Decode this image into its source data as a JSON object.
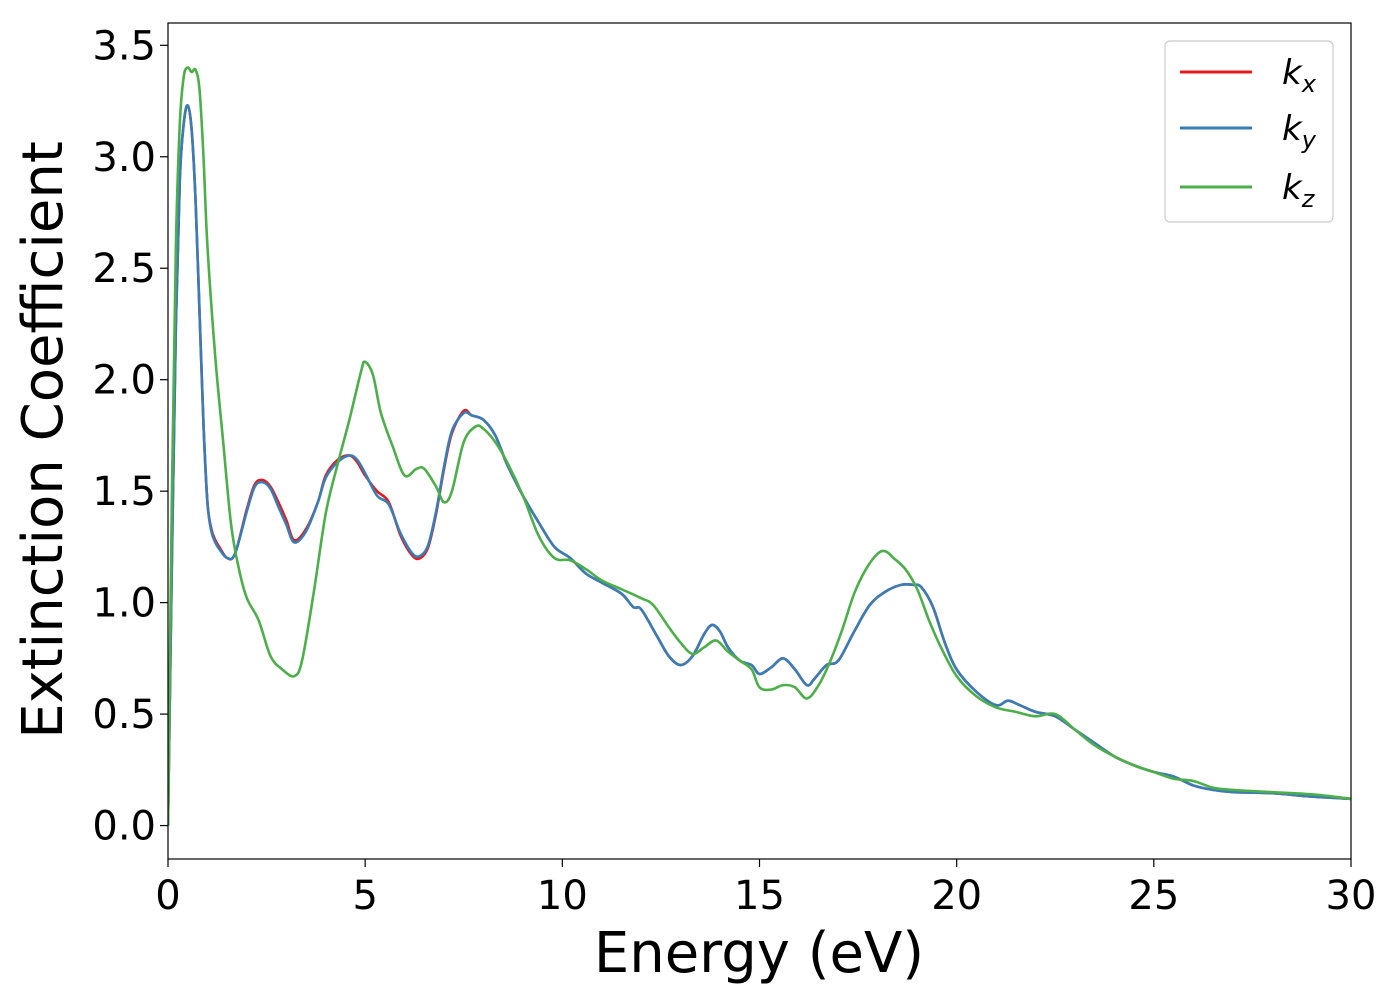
{
  "chart_data": {
    "type": "line",
    "title": "",
    "xlabel": "Energy (eV)",
    "ylabel": "Extinction Coefficient",
    "xlim": [
      0,
      30
    ],
    "ylim": [
      -0.15,
      3.6
    ],
    "xticks": [
      "0",
      "5",
      "10",
      "15",
      "20",
      "25",
      "30"
    ],
    "yticks": [
      "0.0",
      "0.5",
      "1.0",
      "1.5",
      "2.0",
      "2.5",
      "3.0",
      "3.5"
    ],
    "grid": false,
    "legend_position": "top-right",
    "series": [
      {
        "name": "k_x",
        "label_main": "k",
        "label_sub": "x",
        "color": "#e41a1c",
        "x": [
          0,
          0.1,
          0.2,
          0.3,
          0.4,
          0.5,
          0.6,
          0.7,
          0.8,
          0.9,
          1.0,
          1.1,
          1.2,
          1.3,
          1.5,
          1.7,
          2.0,
          2.2,
          2.4,
          2.6,
          2.8,
          3.0,
          3.2,
          3.5,
          3.8,
          4.0,
          4.3,
          4.6,
          4.8,
          5.0,
          5.3,
          5.6,
          5.9,
          6.2,
          6.4,
          6.6,
          6.8,
          7.0,
          7.2,
          7.5,
          7.7,
          8.0,
          8.3,
          8.6,
          9.0,
          9.4,
          9.8,
          10.2,
          10.6,
          11.0,
          11.5,
          11.8,
          12.0,
          12.4,
          12.7,
          13.0,
          13.3,
          13.6,
          13.8,
          14.0,
          14.2,
          14.5,
          14.8,
          15.0,
          15.3,
          15.6,
          15.9,
          16.2,
          16.4,
          16.7,
          17.0,
          17.4,
          17.8,
          18.2,
          18.6,
          18.9,
          19.1,
          19.4,
          19.7,
          20.0,
          20.5,
          21.0,
          21.3,
          21.6,
          22.0,
          22.5,
          23.0,
          23.5,
          24.0,
          24.5,
          25.0,
          25.5,
          26.0,
          26.5,
          27.0,
          28.0,
          29.0,
          30.0
        ],
        "y": [
          0.0,
          1.2,
          2.25,
          2.9,
          3.15,
          3.23,
          3.12,
          2.8,
          2.3,
          1.8,
          1.45,
          1.33,
          1.28,
          1.25,
          1.2,
          1.22,
          1.42,
          1.53,
          1.55,
          1.52,
          1.45,
          1.37,
          1.28,
          1.33,
          1.45,
          1.57,
          1.64,
          1.66,
          1.63,
          1.57,
          1.5,
          1.45,
          1.3,
          1.21,
          1.2,
          1.25,
          1.4,
          1.6,
          1.76,
          1.86,
          1.84,
          1.82,
          1.75,
          1.62,
          1.48,
          1.36,
          1.25,
          1.2,
          1.13,
          1.09,
          1.04,
          0.98,
          0.97,
          0.85,
          0.76,
          0.72,
          0.76,
          0.86,
          0.9,
          0.87,
          0.8,
          0.74,
          0.72,
          0.68,
          0.71,
          0.75,
          0.7,
          0.63,
          0.66,
          0.72,
          0.74,
          0.87,
          0.99,
          1.05,
          1.08,
          1.08,
          1.07,
          0.98,
          0.82,
          0.7,
          0.6,
          0.54,
          0.56,
          0.54,
          0.51,
          0.49,
          0.43,
          0.37,
          0.31,
          0.27,
          0.24,
          0.22,
          0.18,
          0.16,
          0.15,
          0.145,
          0.13,
          0.12
        ]
      },
      {
        "name": "k_y",
        "label_main": "k",
        "label_sub": "y",
        "color": "#377eb8",
        "x": [
          0,
          0.1,
          0.2,
          0.3,
          0.4,
          0.5,
          0.6,
          0.7,
          0.8,
          0.9,
          1.0,
          1.1,
          1.2,
          1.3,
          1.5,
          1.7,
          2.0,
          2.2,
          2.4,
          2.6,
          2.8,
          3.0,
          3.2,
          3.5,
          3.8,
          4.0,
          4.3,
          4.6,
          4.8,
          5.0,
          5.3,
          5.6,
          5.9,
          6.2,
          6.4,
          6.6,
          6.8,
          7.0,
          7.2,
          7.5,
          7.7,
          8.0,
          8.3,
          8.6,
          9.0,
          9.4,
          9.8,
          10.2,
          10.6,
          11.0,
          11.5,
          11.8,
          12.0,
          12.4,
          12.7,
          13.0,
          13.3,
          13.6,
          13.8,
          14.0,
          14.2,
          14.5,
          14.8,
          15.0,
          15.3,
          15.6,
          15.9,
          16.2,
          16.4,
          16.7,
          17.0,
          17.4,
          17.8,
          18.2,
          18.6,
          18.9,
          19.1,
          19.4,
          19.7,
          20.0,
          20.5,
          21.0,
          21.3,
          21.6,
          22.0,
          22.5,
          23.0,
          23.5,
          24.0,
          24.5,
          25.0,
          25.5,
          26.0,
          26.5,
          27.0,
          28.0,
          29.0,
          30.0
        ],
        "y": [
          0.0,
          1.2,
          2.25,
          2.9,
          3.15,
          3.23,
          3.12,
          2.8,
          2.3,
          1.8,
          1.45,
          1.32,
          1.27,
          1.24,
          1.2,
          1.22,
          1.41,
          1.52,
          1.54,
          1.51,
          1.43,
          1.35,
          1.27,
          1.32,
          1.45,
          1.56,
          1.63,
          1.66,
          1.64,
          1.58,
          1.48,
          1.44,
          1.31,
          1.22,
          1.21,
          1.26,
          1.41,
          1.61,
          1.77,
          1.85,
          1.84,
          1.82,
          1.75,
          1.62,
          1.48,
          1.36,
          1.25,
          1.2,
          1.13,
          1.09,
          1.04,
          0.98,
          0.97,
          0.85,
          0.76,
          0.72,
          0.76,
          0.86,
          0.9,
          0.87,
          0.8,
          0.74,
          0.72,
          0.68,
          0.71,
          0.75,
          0.7,
          0.63,
          0.66,
          0.72,
          0.74,
          0.87,
          0.99,
          1.05,
          1.08,
          1.08,
          1.07,
          0.98,
          0.82,
          0.7,
          0.6,
          0.54,
          0.56,
          0.54,
          0.51,
          0.49,
          0.43,
          0.37,
          0.31,
          0.27,
          0.24,
          0.22,
          0.18,
          0.16,
          0.15,
          0.145,
          0.13,
          0.12
        ]
      },
      {
        "name": "k_z",
        "label_main": "k",
        "label_sub": "z",
        "color": "#4daf4a",
        "x": [
          0,
          0.1,
          0.2,
          0.3,
          0.4,
          0.5,
          0.6,
          0.7,
          0.8,
          0.9,
          1.0,
          1.2,
          1.4,
          1.6,
          1.8,
          2.0,
          2.3,
          2.6,
          2.9,
          3.2,
          3.4,
          3.7,
          4.0,
          4.3,
          4.6,
          4.9,
          5.0,
          5.2,
          5.4,
          5.7,
          6.0,
          6.3,
          6.5,
          6.8,
          7.0,
          7.2,
          7.5,
          7.8,
          8.0,
          8.3,
          8.6,
          9.0,
          9.4,
          9.8,
          10.2,
          10.6,
          11.0,
          11.5,
          12.0,
          12.3,
          12.7,
          13.0,
          13.3,
          13.6,
          13.9,
          14.2,
          14.5,
          14.8,
          15.0,
          15.3,
          15.6,
          15.9,
          16.2,
          16.5,
          16.8,
          17.1,
          17.4,
          17.7,
          18.0,
          18.2,
          18.4,
          18.7,
          19.0,
          19.3,
          19.6,
          20.0,
          20.5,
          21.0,
          21.5,
          22.0,
          22.5,
          23.0,
          23.5,
          24.0,
          24.5,
          25.0,
          25.5,
          26.0,
          26.5,
          27.0,
          28.0,
          29.0,
          30.0
        ],
        "y": [
          0.0,
          1.5,
          2.6,
          3.15,
          3.36,
          3.4,
          3.38,
          3.39,
          3.3,
          3.0,
          2.6,
          2.1,
          1.72,
          1.35,
          1.15,
          1.02,
          0.92,
          0.76,
          0.7,
          0.67,
          0.74,
          1.05,
          1.4,
          1.62,
          1.82,
          2.04,
          2.08,
          2.02,
          1.85,
          1.7,
          1.57,
          1.6,
          1.6,
          1.52,
          1.45,
          1.5,
          1.72,
          1.79,
          1.78,
          1.72,
          1.63,
          1.48,
          1.3,
          1.2,
          1.19,
          1.15,
          1.1,
          1.06,
          1.02,
          0.99,
          0.89,
          0.82,
          0.77,
          0.8,
          0.83,
          0.78,
          0.74,
          0.7,
          0.62,
          0.61,
          0.63,
          0.62,
          0.57,
          0.63,
          0.74,
          0.88,
          1.04,
          1.15,
          1.22,
          1.23,
          1.2,
          1.15,
          1.06,
          0.92,
          0.8,
          0.67,
          0.58,
          0.53,
          0.51,
          0.49,
          0.5,
          0.43,
          0.36,
          0.31,
          0.27,
          0.24,
          0.21,
          0.2,
          0.17,
          0.16,
          0.15,
          0.14,
          0.12
        ]
      }
    ]
  }
}
